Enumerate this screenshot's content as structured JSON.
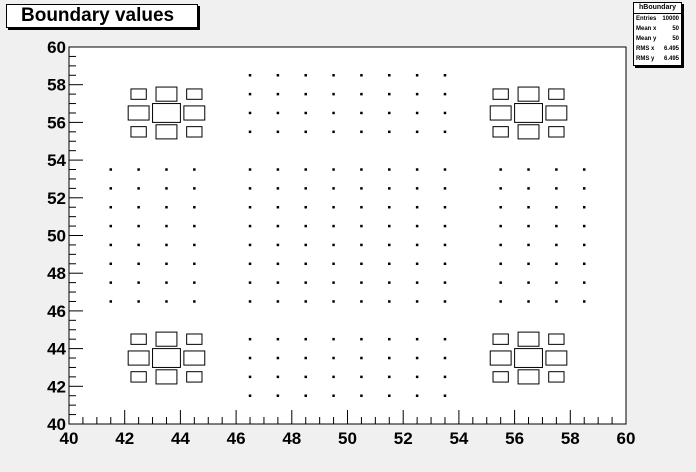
{
  "title": "Boundary values",
  "stats": {
    "name": "hBoundary",
    "rows": [
      {
        "label": "Entries",
        "value": "10000"
      },
      {
        "label": "Mean x",
        "value": "50"
      },
      {
        "label": "Mean y",
        "value": "50"
      },
      {
        "label": "RMS x",
        "value": "6.495"
      },
      {
        "label": "RMS y",
        "value": "6.495"
      }
    ]
  },
  "chart_data": {
    "type": "heatmap",
    "title": "Boundary values",
    "xlabel": "",
    "ylabel": "",
    "xlim": [
      40,
      60
    ],
    "ylim": [
      40,
      60
    ],
    "bin_width": 1,
    "x_ticks": [
      40,
      42,
      44,
      46,
      48,
      50,
      52,
      54,
      56,
      58,
      60
    ],
    "y_ticks": [
      40,
      42,
      44,
      46,
      48,
      50,
      52,
      54,
      56,
      58,
      60
    ],
    "grid": false,
    "cells": [
      {
        "x": 42.5,
        "y": 42.5,
        "v": 0.55
      },
      {
        "x": 43.5,
        "y": 42.5,
        "v": 0.75
      },
      {
        "x": 44.5,
        "y": 42.5,
        "v": 0.55
      },
      {
        "x": 42.5,
        "y": 43.5,
        "v": 0.75
      },
      {
        "x": 43.5,
        "y": 43.5,
        "v": 1.0
      },
      {
        "x": 44.5,
        "y": 43.5,
        "v": 0.75
      },
      {
        "x": 42.5,
        "y": 44.5,
        "v": 0.55
      },
      {
        "x": 43.5,
        "y": 44.5,
        "v": 0.75
      },
      {
        "x": 44.5,
        "y": 44.5,
        "v": 0.55
      },
      {
        "x": 55.5,
        "y": 42.5,
        "v": 0.55
      },
      {
        "x": 56.5,
        "y": 42.5,
        "v": 0.75
      },
      {
        "x": 57.5,
        "y": 42.5,
        "v": 0.55
      },
      {
        "x": 55.5,
        "y": 43.5,
        "v": 0.75
      },
      {
        "x": 56.5,
        "y": 43.5,
        "v": 1.0
      },
      {
        "x": 57.5,
        "y": 43.5,
        "v": 0.75
      },
      {
        "x": 55.5,
        "y": 44.5,
        "v": 0.55
      },
      {
        "x": 56.5,
        "y": 44.5,
        "v": 0.75
      },
      {
        "x": 57.5,
        "y": 44.5,
        "v": 0.55
      },
      {
        "x": 42.5,
        "y": 55.5,
        "v": 0.55
      },
      {
        "x": 43.5,
        "y": 55.5,
        "v": 0.75
      },
      {
        "x": 44.5,
        "y": 55.5,
        "v": 0.55
      },
      {
        "x": 42.5,
        "y": 56.5,
        "v": 0.75
      },
      {
        "x": 43.5,
        "y": 56.5,
        "v": 1.0
      },
      {
        "x": 44.5,
        "y": 56.5,
        "v": 0.75
      },
      {
        "x": 42.5,
        "y": 57.5,
        "v": 0.55
      },
      {
        "x": 43.5,
        "y": 57.5,
        "v": 0.75
      },
      {
        "x": 44.5,
        "y": 57.5,
        "v": 0.55
      },
      {
        "x": 55.5,
        "y": 55.5,
        "v": 0.55
      },
      {
        "x": 56.5,
        "y": 55.5,
        "v": 0.75
      },
      {
        "x": 57.5,
        "y": 55.5,
        "v": 0.55
      },
      {
        "x": 55.5,
        "y": 56.5,
        "v": 0.75
      },
      {
        "x": 56.5,
        "y": 56.5,
        "v": 1.0
      },
      {
        "x": 57.5,
        "y": 56.5,
        "v": 0.75
      },
      {
        "x": 55.5,
        "y": 57.5,
        "v": 0.55
      },
      {
        "x": 56.5,
        "y": 57.5,
        "v": 0.75
      },
      {
        "x": 57.5,
        "y": 57.5,
        "v": 0.55
      }
    ],
    "dot_groups": [
      {
        "xs": [
          46.5,
          47.5,
          48.5,
          49.5,
          50.5,
          51.5,
          52.5,
          53.5
        ],
        "ys": [
          58.5,
          57.5,
          56.5,
          55.5,
          44.5,
          43.5,
          42.5,
          41.5
        ]
      },
      {
        "xs": [
          41.5,
          42.5,
          43.5,
          44.5,
          55.5,
          56.5,
          57.5,
          58.5
        ],
        "ys": [
          53.5,
          52.5,
          51.5,
          50.5,
          49.5,
          48.5,
          47.5,
          46.5
        ]
      },
      {
        "xs": [
          46.5,
          47.5,
          48.5,
          49.5,
          50.5,
          51.5,
          52.5,
          53.5
        ],
        "ys": [
          53.5,
          52.5,
          51.5,
          50.5,
          49.5,
          48.5,
          47.5,
          46.5
        ]
      }
    ],
    "dot_value": 0.08,
    "colors": {
      "frame_bg": "#f0f0f0",
      "plot_bg": "#ffffff",
      "box_stroke": "#000000"
    }
  }
}
